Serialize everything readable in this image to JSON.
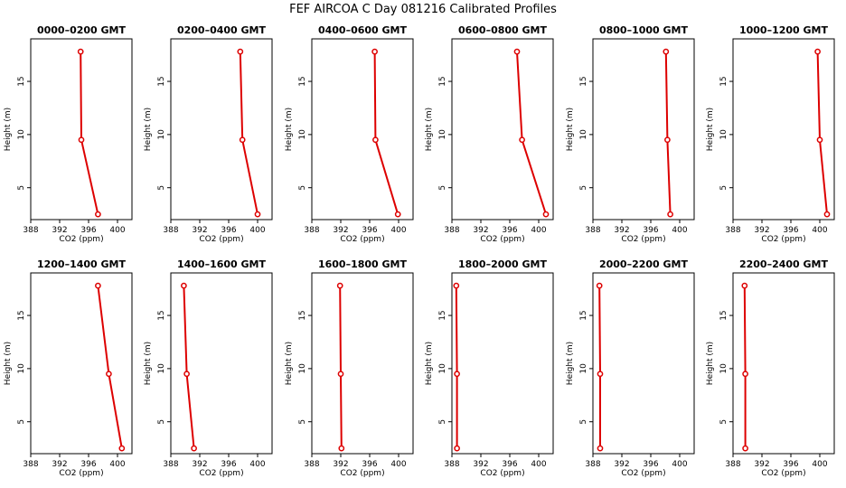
{
  "title": "FEF AIRCOA C  Day 081216  Calibrated Profiles",
  "chart_data": {
    "type": "line",
    "title": "FEF AIRCOA C  Day 081216  Calibrated Profiles",
    "xlabel": "CO2 (ppm)",
    "ylabel": "Height (m)",
    "xlim": [
      388,
      402
    ],
    "ylim": [
      2,
      19
    ],
    "xticks": [
      "388",
      "392",
      "396",
      "400"
    ],
    "yticks": [
      "5",
      "10",
      "15"
    ],
    "x_tick_values": [
      388,
      392,
      396,
      400
    ],
    "y_tick_values": [
      5,
      10,
      15
    ],
    "heights": [
      2.5,
      9.5,
      17.8
    ],
    "color": "#dd0000",
    "panels": [
      {
        "title": "0000–0200 GMT",
        "co2": [
          397.3,
          395.0,
          394.9
        ]
      },
      {
        "title": "0200–0400 GMT",
        "co2": [
          400.0,
          397.9,
          397.6
        ]
      },
      {
        "title": "0400–0600 GMT",
        "co2": [
          399.9,
          396.8,
          396.7
        ]
      },
      {
        "title": "0600–0800 GMT",
        "co2": [
          401.0,
          397.7,
          397.0
        ]
      },
      {
        "title": "0800–1000 GMT",
        "co2": [
          398.7,
          398.3,
          398.1
        ]
      },
      {
        "title": "1000–1200 GMT",
        "co2": [
          401.0,
          400.0,
          399.7
        ]
      },
      {
        "title": "1200–1400 GMT",
        "co2": [
          400.6,
          398.8,
          397.3
        ]
      },
      {
        "title": "1400–1600 GMT",
        "co2": [
          391.2,
          390.2,
          389.8
        ]
      },
      {
        "title": "1600–1800 GMT",
        "co2": [
          392.1,
          392.0,
          391.9
        ]
      },
      {
        "title": "1800–2000 GMT",
        "co2": [
          388.7,
          388.7,
          388.6
        ]
      },
      {
        "title": "2000–2200 GMT",
        "co2": [
          389.0,
          389.0,
          388.9
        ]
      },
      {
        "title": "2200–2400 GMT",
        "co2": [
          389.7,
          389.7,
          389.6
        ]
      }
    ]
  }
}
